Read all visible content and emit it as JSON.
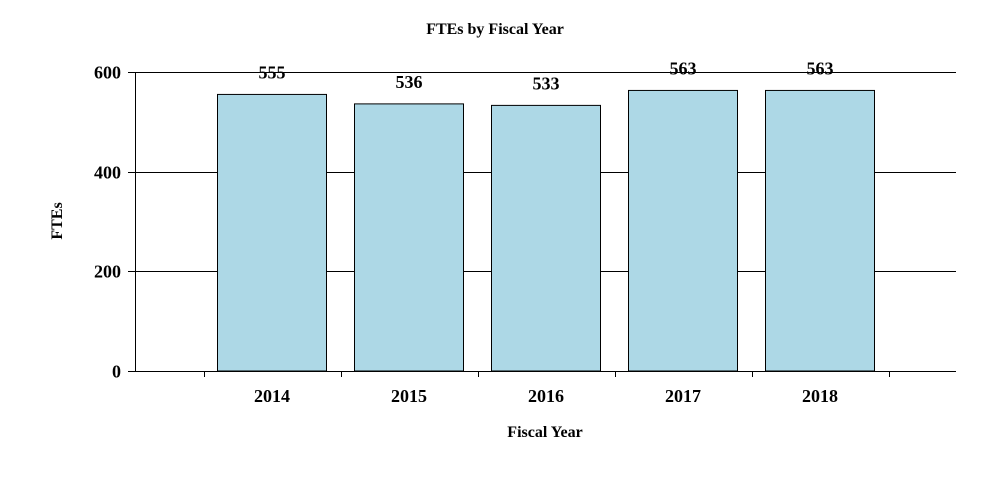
{
  "chart_data": {
    "type": "bar",
    "title": "FTEs by Fiscal Year",
    "xlabel": "Fiscal Year",
    "ylabel": "FTEs",
    "categories": [
      "2014",
      "2015",
      "2016",
      "2017",
      "2018"
    ],
    "values": [
      555,
      536,
      533,
      563,
      563
    ],
    "data_labels": [
      "555",
      "536",
      "533",
      "563",
      "563"
    ],
    "ylim": [
      0,
      600
    ],
    "yticks": [
      0,
      200,
      400,
      600
    ],
    "ytick_labels": [
      "0",
      "200",
      "400",
      "600"
    ],
    "grid": true,
    "legend": "none"
  },
  "colors": {
    "bar_fill": "#add8e6",
    "bar_stroke": "#000000",
    "gridline": "#000000",
    "text": "#000000",
    "background": "#ffffff"
  }
}
